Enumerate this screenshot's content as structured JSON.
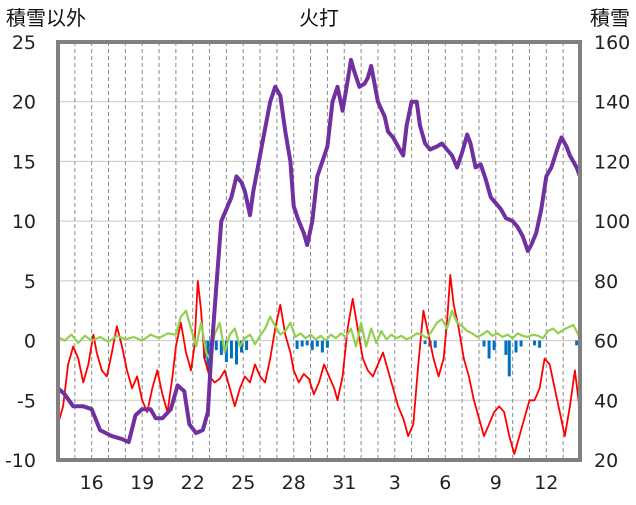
{
  "chart_data": {
    "type": "line",
    "title": "火打",
    "left_axis_label": "積雪以外",
    "right_axis_label": "積雪",
    "left_ylim": [
      -10,
      25
    ],
    "left_ticks": [
      -10,
      -5,
      0,
      5,
      10,
      15,
      20,
      25
    ],
    "right_ylim": [
      20,
      160
    ],
    "right_ticks": [
      20,
      40,
      60,
      80,
      100,
      120,
      140,
      160
    ],
    "x_tick_labels": [
      "16",
      "19",
      "22",
      "25",
      "28",
      "31",
      "3",
      "6",
      "9",
      "12"
    ],
    "x_tick_index": [
      2,
      5,
      8,
      11,
      14,
      17,
      20,
      23,
      26,
      29
    ],
    "x_range": [
      0,
      31
    ],
    "grid": {
      "horizontal": true,
      "vertical_dashed": true
    },
    "colors": {
      "snow_depth": "#7030a0",
      "temperature": "#ff0000",
      "wind": "#92d050",
      "precip": "#0070c0",
      "frame": "#808080"
    },
    "snow_depth": {
      "axis": "right",
      "points": [
        [
          0.0,
          44
        ],
        [
          0.4,
          42
        ],
        [
          0.9,
          38
        ],
        [
          1.5,
          38
        ],
        [
          2.0,
          37
        ],
        [
          2.5,
          30
        ],
        [
          3.2,
          28
        ],
        [
          3.8,
          27
        ],
        [
          4.2,
          26
        ],
        [
          4.6,
          35
        ],
        [
          5.0,
          37
        ],
        [
          5.5,
          37
        ],
        [
          5.8,
          34
        ],
        [
          6.2,
          34
        ],
        [
          6.7,
          37
        ],
        [
          7.1,
          45
        ],
        [
          7.5,
          43
        ],
        [
          7.8,
          32
        ],
        [
          8.2,
          29
        ],
        [
          8.6,
          30
        ],
        [
          8.9,
          36
        ],
        [
          9.1,
          55
        ],
        [
          9.4,
          78
        ],
        [
          9.7,
          100
        ],
        [
          10.0,
          104
        ],
        [
          10.3,
          108
        ],
        [
          10.6,
          115
        ],
        [
          10.9,
          113
        ],
        [
          11.1,
          110
        ],
        [
          11.4,
          102
        ],
        [
          11.6,
          110
        ],
        [
          11.8,
          116
        ],
        [
          12.1,
          125
        ],
        [
          12.6,
          140
        ],
        [
          12.9,
          145
        ],
        [
          13.2,
          142
        ],
        [
          13.5,
          130
        ],
        [
          13.8,
          120
        ],
        [
          14.0,
          105
        ],
        [
          14.3,
          100
        ],
        [
          14.6,
          96
        ],
        [
          14.8,
          92
        ],
        [
          15.1,
          100
        ],
        [
          15.4,
          115
        ],
        [
          15.7,
          120
        ],
        [
          16.0,
          125
        ],
        [
          16.3,
          140
        ],
        [
          16.6,
          145
        ],
        [
          16.9,
          137
        ],
        [
          17.2,
          147
        ],
        [
          17.4,
          154
        ],
        [
          17.6,
          150
        ],
        [
          17.9,
          145
        ],
        [
          18.2,
          146
        ],
        [
          18.4,
          148
        ],
        [
          18.6,
          152
        ],
        [
          19.0,
          140
        ],
        [
          19.4,
          135
        ],
        [
          19.6,
          130
        ],
        [
          19.9,
          128
        ],
        [
          20.2,
          125
        ],
        [
          20.5,
          122
        ],
        [
          20.7,
          132
        ],
        [
          21.0,
          140
        ],
        [
          21.3,
          140
        ],
        [
          21.5,
          132
        ],
        [
          21.8,
          126
        ],
        [
          22.1,
          124
        ],
        [
          22.5,
          125
        ],
        [
          22.8,
          126
        ],
        [
          23.1,
          124
        ],
        [
          23.4,
          122
        ],
        [
          23.7,
          118
        ],
        [
          24.0,
          123
        ],
        [
          24.3,
          129
        ],
        [
          24.5,
          126
        ],
        [
          24.8,
          118
        ],
        [
          25.1,
          119
        ],
        [
          25.4,
          114
        ],
        [
          25.7,
          108
        ],
        [
          26.0,
          106
        ],
        [
          26.3,
          104
        ],
        [
          26.6,
          101
        ],
        [
          27.0,
          100
        ],
        [
          27.3,
          98
        ],
        [
          27.6,
          95
        ],
        [
          27.9,
          90
        ],
        [
          28.1,
          92
        ],
        [
          28.4,
          96
        ],
        [
          28.7,
          104
        ],
        [
          29.0,
          115
        ],
        [
          29.3,
          118
        ],
        [
          29.7,
          125
        ],
        [
          29.9,
          128
        ],
        [
          30.2,
          125
        ],
        [
          30.4,
          122
        ],
        [
          30.8,
          118
        ],
        [
          31.0,
          115
        ]
      ]
    },
    "temperature": {
      "axis": "left",
      "points": [
        [
          0.0,
          -7.0
        ],
        [
          0.3,
          -5.5
        ],
        [
          0.6,
          -2.0
        ],
        [
          0.9,
          -0.5
        ],
        [
          1.2,
          -1.5
        ],
        [
          1.5,
          -3.5
        ],
        [
          1.8,
          -2.0
        ],
        [
          2.1,
          0.5
        ],
        [
          2.3,
          -1.0
        ],
        [
          2.6,
          -2.5
        ],
        [
          2.9,
          -3.0
        ],
        [
          3.2,
          -1.0
        ],
        [
          3.5,
          1.2
        ],
        [
          3.8,
          -0.5
        ],
        [
          4.1,
          -2.5
        ],
        [
          4.4,
          -4.0
        ],
        [
          4.7,
          -3.0
        ],
        [
          5.0,
          -5.0
        ],
        [
          5.3,
          -6.0
        ],
        [
          5.6,
          -4.0
        ],
        [
          5.9,
          -2.5
        ],
        [
          6.2,
          -4.5
        ],
        [
          6.5,
          -6.0
        ],
        [
          6.8,
          -3.0
        ],
        [
          7.0,
          -0.5
        ],
        [
          7.3,
          1.5
        ],
        [
          7.6,
          -1.0
        ],
        [
          7.9,
          -2.5
        ],
        [
          8.1,
          -0.5
        ],
        [
          8.3,
          5.0
        ],
        [
          8.5,
          2.5
        ],
        [
          8.7,
          -1.5
        ],
        [
          9.0,
          -3.0
        ],
        [
          9.3,
          -3.5
        ],
        [
          9.6,
          -3.2
        ],
        [
          9.9,
          -2.5
        ],
        [
          10.2,
          -4.0
        ],
        [
          10.5,
          -5.5
        ],
        [
          10.8,
          -4.0
        ],
        [
          11.1,
          -3.0
        ],
        [
          11.4,
          -3.5
        ],
        [
          11.7,
          -2.0
        ],
        [
          12.0,
          -3.0
        ],
        [
          12.3,
          -3.5
        ],
        [
          12.6,
          -1.5
        ],
        [
          12.9,
          1.0
        ],
        [
          13.2,
          3.0
        ],
        [
          13.5,
          0.5
        ],
        [
          13.8,
          -1.0
        ],
        [
          14.0,
          -2.5
        ],
        [
          14.3,
          -3.5
        ],
        [
          14.6,
          -2.8
        ],
        [
          14.9,
          -3.2
        ],
        [
          15.2,
          -4.5
        ],
        [
          15.5,
          -3.5
        ],
        [
          15.8,
          -2.0
        ],
        [
          16.1,
          -3.0
        ],
        [
          16.4,
          -4.0
        ],
        [
          16.6,
          -5.0
        ],
        [
          16.9,
          -3.0
        ],
        [
          17.2,
          1.0
        ],
        [
          17.5,
          3.5
        ],
        [
          17.8,
          1.0
        ],
        [
          18.1,
          -1.5
        ],
        [
          18.4,
          -2.5
        ],
        [
          18.7,
          -3.0
        ],
        [
          19.0,
          -2.0
        ],
        [
          19.3,
          -1.0
        ],
        [
          19.6,
          -2.5
        ],
        [
          19.9,
          -4.0
        ],
        [
          20.2,
          -5.5
        ],
        [
          20.5,
          -6.5
        ],
        [
          20.8,
          -8.0
        ],
        [
          21.1,
          -7.0
        ],
        [
          21.4,
          -2.0
        ],
        [
          21.7,
          2.5
        ],
        [
          22.0,
          0.5
        ],
        [
          22.3,
          -1.5
        ],
        [
          22.6,
          -3.0
        ],
        [
          22.9,
          -1.5
        ],
        [
          23.1,
          1.5
        ],
        [
          23.3,
          5.5
        ],
        [
          23.5,
          3.0
        ],
        [
          23.8,
          1.0
        ],
        [
          24.1,
          -1.5
        ],
        [
          24.4,
          -3.0
        ],
        [
          24.7,
          -5.0
        ],
        [
          25.0,
          -6.5
        ],
        [
          25.3,
          -8.0
        ],
        [
          25.6,
          -7.0
        ],
        [
          25.9,
          -6.0
        ],
        [
          26.2,
          -5.5
        ],
        [
          26.5,
          -6.0
        ],
        [
          26.8,
          -8.0
        ],
        [
          27.1,
          -9.5
        ],
        [
          27.4,
          -8.0
        ],
        [
          27.7,
          -6.5
        ],
        [
          28.0,
          -5.0
        ],
        [
          28.3,
          -5.0
        ],
        [
          28.6,
          -4.0
        ],
        [
          28.9,
          -1.5
        ],
        [
          29.2,
          -2.0
        ],
        [
          29.5,
          -4.0
        ],
        [
          29.8,
          -6.0
        ],
        [
          30.1,
          -8.0
        ],
        [
          30.4,
          -5.5
        ],
        [
          30.7,
          -2.5
        ],
        [
          31.0,
          -6.0
        ]
      ]
    },
    "wind": {
      "axis": "left",
      "points": [
        [
          0.0,
          0.3
        ],
        [
          0.4,
          0.0
        ],
        [
          0.8,
          0.5
        ],
        [
          1.2,
          -0.2
        ],
        [
          1.6,
          0.4
        ],
        [
          2.0,
          0.0
        ],
        [
          2.5,
          0.3
        ],
        [
          3.0,
          -0.1
        ],
        [
          3.5,
          0.4
        ],
        [
          4.0,
          0.1
        ],
        [
          4.5,
          0.3
        ],
        [
          5.0,
          0.0
        ],
        [
          5.5,
          0.5
        ],
        [
          6.0,
          0.2
        ],
        [
          6.5,
          0.6
        ],
        [
          7.0,
          0.5
        ],
        [
          7.3,
          2.0
        ],
        [
          7.6,
          2.5
        ],
        [
          7.9,
          1.0
        ],
        [
          8.2,
          -0.5
        ],
        [
          8.5,
          1.5
        ],
        [
          8.8,
          -1.0
        ],
        [
          9.0,
          -1.5
        ],
        [
          9.3,
          0.5
        ],
        [
          9.6,
          1.5
        ],
        [
          9.9,
          -1.0
        ],
        [
          10.2,
          0.5
        ],
        [
          10.5,
          1.0
        ],
        [
          10.8,
          -0.5
        ],
        [
          11.1,
          0.2
        ],
        [
          11.4,
          0.5
        ],
        [
          11.7,
          -0.3
        ],
        [
          12.0,
          0.4
        ],
        [
          12.3,
          1.0
        ],
        [
          12.6,
          2.0
        ],
        [
          12.9,
          1.2
        ],
        [
          13.2,
          0.5
        ],
        [
          13.5,
          0.8
        ],
        [
          13.8,
          1.5
        ],
        [
          14.1,
          0.3
        ],
        [
          14.4,
          0.6
        ],
        [
          14.7,
          0.2
        ],
        [
          15.0,
          0.5
        ],
        [
          15.3,
          0.1
        ],
        [
          15.6,
          0.4
        ],
        [
          15.9,
          0.0
        ],
        [
          16.2,
          0.5
        ],
        [
          16.5,
          0.2
        ],
        [
          16.8,
          0.6
        ],
        [
          17.1,
          0.3
        ],
        [
          17.4,
          1.0
        ],
        [
          17.7,
          -0.5
        ],
        [
          18.0,
          1.5
        ],
        [
          18.3,
          -0.5
        ],
        [
          18.6,
          1.0
        ],
        [
          18.9,
          -0.2
        ],
        [
          19.2,
          0.8
        ],
        [
          19.5,
          0.1
        ],
        [
          19.8,
          0.5
        ],
        [
          20.1,
          0.2
        ],
        [
          20.4,
          0.4
        ],
        [
          20.7,
          0.1
        ],
        [
          21.0,
          0.3
        ],
        [
          21.3,
          0.6
        ],
        [
          21.6,
          0.5
        ],
        [
          21.9,
          0.2
        ],
        [
          22.2,
          0.8
        ],
        [
          22.5,
          1.5
        ],
        [
          22.8,
          1.8
        ],
        [
          23.1,
          1.0
        ],
        [
          23.4,
          2.5
        ],
        [
          23.7,
          1.5
        ],
        [
          24.0,
          1.2
        ],
        [
          24.3,
          0.8
        ],
        [
          24.6,
          0.6
        ],
        [
          24.9,
          0.3
        ],
        [
          25.2,
          0.5
        ],
        [
          25.5,
          0.8
        ],
        [
          25.8,
          0.4
        ],
        [
          26.1,
          0.6
        ],
        [
          26.4,
          0.3
        ],
        [
          26.7,
          0.5
        ],
        [
          27.0,
          0.2
        ],
        [
          27.3,
          0.6
        ],
        [
          27.6,
          0.4
        ],
        [
          27.9,
          0.3
        ],
        [
          28.2,
          0.5
        ],
        [
          28.5,
          0.4
        ],
        [
          28.8,
          0.2
        ],
        [
          29.1,
          0.8
        ],
        [
          29.4,
          1.0
        ],
        [
          29.7,
          0.6
        ],
        [
          30.0,
          0.9
        ],
        [
          30.3,
          1.1
        ],
        [
          30.6,
          1.3
        ],
        [
          30.9,
          0.5
        ],
        [
          31.0,
          0.8
        ]
      ]
    },
    "precip": {
      "axis": "left",
      "bars": [
        [
          8.7,
          -1.5
        ],
        [
          8.9,
          -2.5
        ],
        [
          9.1,
          -1.0
        ],
        [
          9.4,
          -0.8
        ],
        [
          9.7,
          -1.2
        ],
        [
          10.0,
          -1.8
        ],
        [
          10.3,
          -1.5
        ],
        [
          10.6,
          -2.0
        ],
        [
          10.9,
          -1.0
        ],
        [
          11.2,
          -0.8
        ],
        [
          14.2,
          -0.7
        ],
        [
          14.5,
          -0.5
        ],
        [
          14.8,
          -0.4
        ],
        [
          15.1,
          -0.8
        ],
        [
          15.4,
          -0.5
        ],
        [
          15.7,
          -1.0
        ],
        [
          16.0,
          -0.6
        ],
        [
          21.8,
          -0.3
        ],
        [
          22.1,
          -0.5
        ],
        [
          22.4,
          -0.6
        ],
        [
          25.3,
          -0.5
        ],
        [
          25.6,
          -1.5
        ],
        [
          25.9,
          -0.8
        ],
        [
          26.6,
          -1.2
        ],
        [
          26.8,
          -3.0
        ],
        [
          27.2,
          -1.0
        ],
        [
          27.5,
          -0.5
        ],
        [
          28.3,
          -0.4
        ],
        [
          28.6,
          -0.6
        ],
        [
          30.8,
          -0.4
        ],
        [
          31.0,
          -0.6
        ]
      ]
    }
  }
}
